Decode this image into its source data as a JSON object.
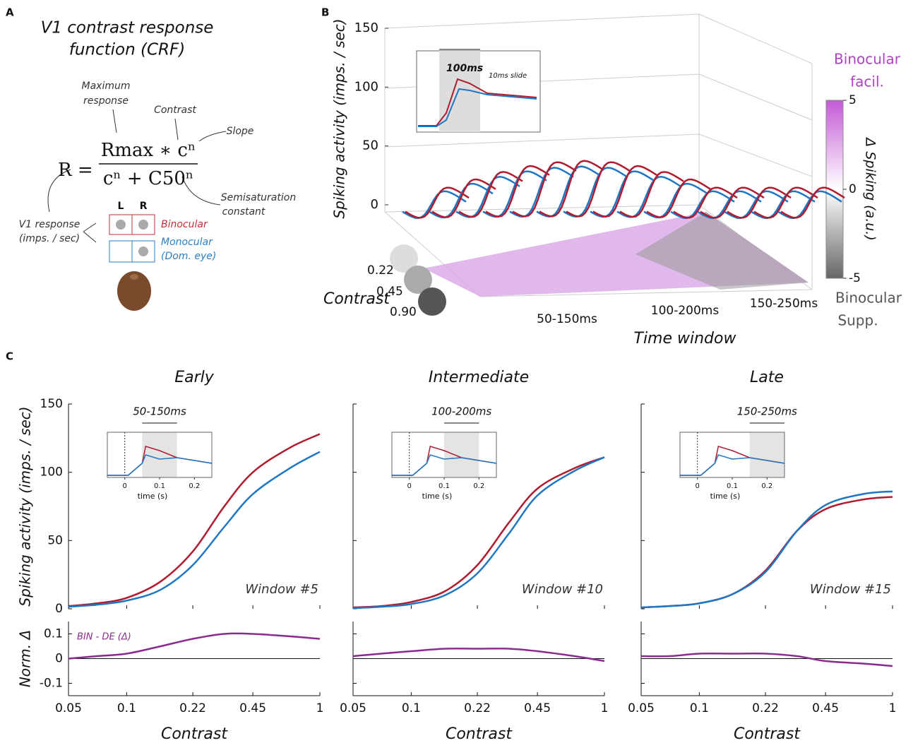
{
  "panel_a": {
    "label": "A",
    "title": [
      "V1 contrast response",
      "function (CRF)"
    ],
    "annotations": {
      "max_response": [
        "Maximum",
        "response"
      ],
      "contrast": "Contrast",
      "slope": "Slope",
      "semisaturation": [
        "Semisaturation",
        "constant"
      ],
      "v1_response": [
        "V1 response",
        "(imps. / sec)"
      ]
    },
    "equation": {
      "lhs": "R =",
      "numerator": "Rmax ∗ cⁿ",
      "denominator": "cⁿ + C50ⁿ"
    },
    "eyes": {
      "left": "L",
      "right": "R"
    },
    "conditions": {
      "binocular": "Binocular",
      "monocular": [
        "Monocular",
        "(Dom. eye)"
      ]
    }
  },
  "panel_b": {
    "label": "B",
    "ylabel": "Spiking activity (imps. / sec)",
    "ylim": [
      0,
      150
    ],
    "yticks": [
      0,
      50,
      100,
      150
    ],
    "contrast_label": "Contrast",
    "contrast_ticks": [
      "0.22",
      "0.45",
      "0.90"
    ],
    "time_label": "Time window",
    "time_ticks": [
      "50-150ms",
      "100-200ms",
      "150-250ms"
    ],
    "inset_window": "100ms",
    "inset_slide": "10ms slide",
    "colorbar": {
      "label": "Δ Spiking (a.u.)",
      "top": [
        "Binocular",
        "facil."
      ],
      "bottom": [
        "Binocular",
        "Supp."
      ],
      "lim": [
        -5,
        5
      ],
      "ticks": [
        5,
        0,
        -5
      ]
    }
  },
  "panel_c_label": "C",
  "chart_data": [
    {
      "type": "line",
      "title": "Early",
      "annotation": "Window #5",
      "inset_title": "50-150ms",
      "inset_window": [
        0.05,
        0.15
      ],
      "ylabel": "Spiking activity (imps. / sec)",
      "show_ytick_labels": true,
      "x": [
        0.05,
        0.07,
        0.1,
        0.15,
        0.22,
        0.32,
        0.45,
        0.7,
        1
      ],
      "xlim": [
        0.05,
        1
      ],
      "xticks": [
        0.05,
        0.1,
        0.22,
        0.45,
        1
      ],
      "xlabel": "Contrast",
      "log_x": true,
      "ylim": [
        0,
        150
      ],
      "yticks": [
        0,
        50,
        100,
        150
      ],
      "series": [
        {
          "name": "Binocular",
          "color": "#b01c2e",
          "values": [
            2,
            4,
            8,
            20,
            42,
            75,
            100,
            118,
            128
          ]
        },
        {
          "name": "Monocular",
          "color": "#1f77c4",
          "values": [
            1.5,
            3,
            6,
            14,
            32,
            60,
            84,
            103,
            115
          ]
        }
      ],
      "diff": {
        "label": "BIN - DE (Δ)",
        "ylabel": "Norm. Δ",
        "color": "#8b2a8f",
        "values": [
          0,
          0.01,
          0.02,
          0.05,
          0.08,
          0.1,
          0.1,
          0.09,
          0.08
        ],
        "ylim": [
          -0.15,
          0.15
        ],
        "yticks": [
          -0.1,
          0,
          0.1
        ]
      }
    },
    {
      "type": "line",
      "title": "Intermediate",
      "annotation": "Window #10",
      "inset_title": "100-200ms",
      "inset_window": [
        0.1,
        0.2
      ],
      "show_ytick_labels": false,
      "x": [
        0.05,
        0.07,
        0.1,
        0.15,
        0.22,
        0.32,
        0.45,
        0.7,
        1
      ],
      "xlim": [
        0.05,
        1
      ],
      "xticks": [
        0.05,
        0.1,
        0.22,
        0.45,
        1
      ],
      "xlabel": "Contrast",
      "log_x": true,
      "ylim": [
        0,
        150
      ],
      "yticks": [
        0,
        50,
        100,
        150
      ],
      "series": [
        {
          "name": "Binocular",
          "color": "#b01c2e",
          "values": [
            1,
            2,
            5,
            13,
            32,
            63,
            88,
            103,
            111
          ]
        },
        {
          "name": "Monocular",
          "color": "#1f77c4",
          "values": [
            0.5,
            1.5,
            3.5,
            10,
            26,
            55,
            83,
            101,
            111
          ]
        }
      ],
      "diff": {
        "color": "#8b2a8f",
        "values": [
          0.01,
          0.02,
          0.03,
          0.04,
          0.04,
          0.04,
          0.03,
          0.01,
          -0.01
        ],
        "ylim": [
          -0.15,
          0.15
        ],
        "yticks": [
          -0.1,
          0,
          0.1
        ]
      }
    },
    {
      "type": "line",
      "title": "Late",
      "annotation": "Window #15",
      "inset_title": "150-250ms",
      "inset_window": [
        0.15,
        0.25
      ],
      "show_ytick_labels": false,
      "x": [
        0.05,
        0.07,
        0.1,
        0.15,
        0.22,
        0.32,
        0.45,
        0.7,
        1
      ],
      "xlim": [
        0.05,
        1
      ],
      "xticks": [
        0.05,
        0.1,
        0.22,
        0.45,
        1
      ],
      "xlabel": "Contrast",
      "log_x": true,
      "ylim": [
        0,
        150
      ],
      "yticks": [
        0,
        50,
        100,
        150
      ],
      "series": [
        {
          "name": "Binocular",
          "color": "#b01c2e",
          "values": [
            1,
            2,
            4,
            11,
            28,
            57,
            73,
            80,
            82
          ]
        },
        {
          "name": "Monocular",
          "color": "#1f77c4",
          "values": [
            1,
            2,
            4,
            11,
            27,
            57,
            76,
            84,
            86
          ]
        }
      ],
      "diff": {
        "color": "#8b2a8f",
        "values": [
          0.01,
          0.01,
          0.02,
          0.02,
          0.02,
          0.01,
          -0.01,
          -0.02,
          -0.03
        ],
        "ylim": [
          -0.15,
          0.15
        ],
        "yticks": [
          -0.1,
          0,
          0.1
        ]
      }
    }
  ],
  "inset": {
    "xlabel": "time (s)",
    "xlim": [
      -0.05,
      0.25
    ],
    "xticks": [
      0,
      0.1,
      0.2
    ]
  }
}
